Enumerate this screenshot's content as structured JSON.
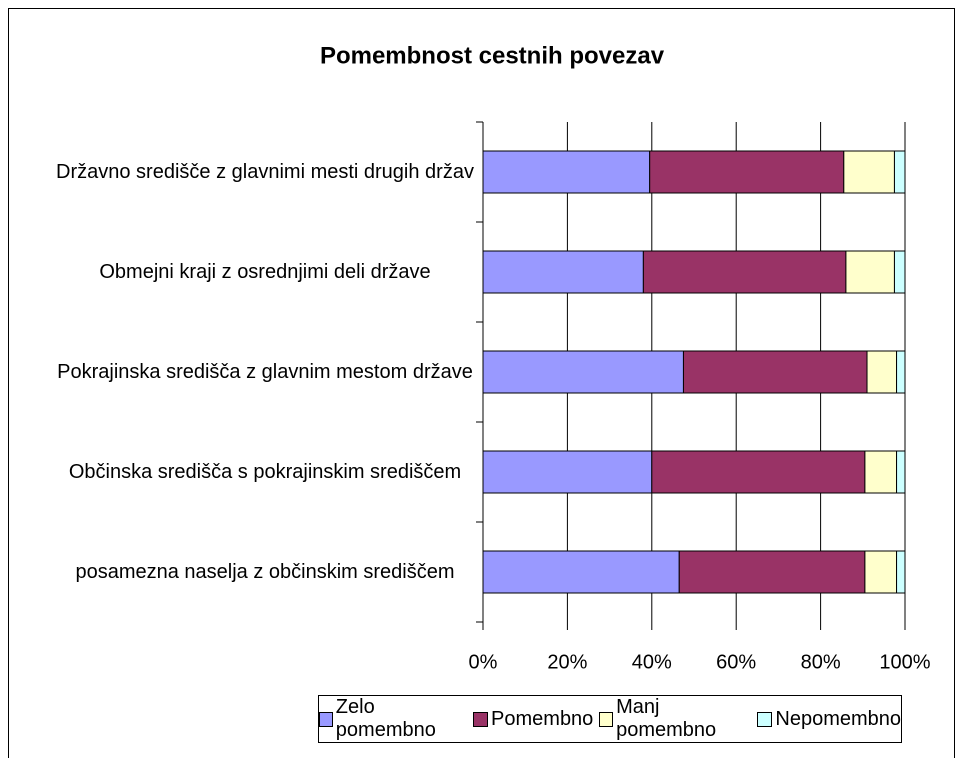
{
  "chart_data": {
    "type": "stacked_barh",
    "title": "Pomembnost cestnih povezav",
    "categories": [
      "Državno središče z glavnimi mesti drugih držav",
      "Obmejni kraji z osrednjimi deli države",
      "Pokrajinska središča z glavnim mestom države",
      "Občinska središča s pokrajinskim središčem",
      "posamezna naselja z občinskim središčem"
    ],
    "series": [
      {
        "name": "Zelo pomembno",
        "color": "#9999ff",
        "values": [
          39.5,
          38,
          47.5,
          40,
          46.5
        ]
      },
      {
        "name": "Pomembno",
        "color": "#993366",
        "values": [
          46,
          48,
          43.5,
          50.5,
          44
        ]
      },
      {
        "name": "Manj pomembno",
        "color": "#ffffcc",
        "values": [
          12,
          11.5,
          7,
          7.5,
          7.5
        ]
      },
      {
        "name": "Nepomembno",
        "color": "#ccffff",
        "values": [
          2.5,
          2.5,
          2,
          2,
          2
        ]
      }
    ],
    "xlim": [
      0,
      100
    ],
    "xticks": [
      {
        "value": 0,
        "label": "0%"
      },
      {
        "value": 20,
        "label": "20%"
      },
      {
        "value": 40,
        "label": "40%"
      },
      {
        "value": 60,
        "label": "60%"
      },
      {
        "value": 80,
        "label": "80%"
      },
      {
        "value": 100,
        "label": "100%"
      }
    ],
    "grid": true,
    "legend": "bottom"
  }
}
